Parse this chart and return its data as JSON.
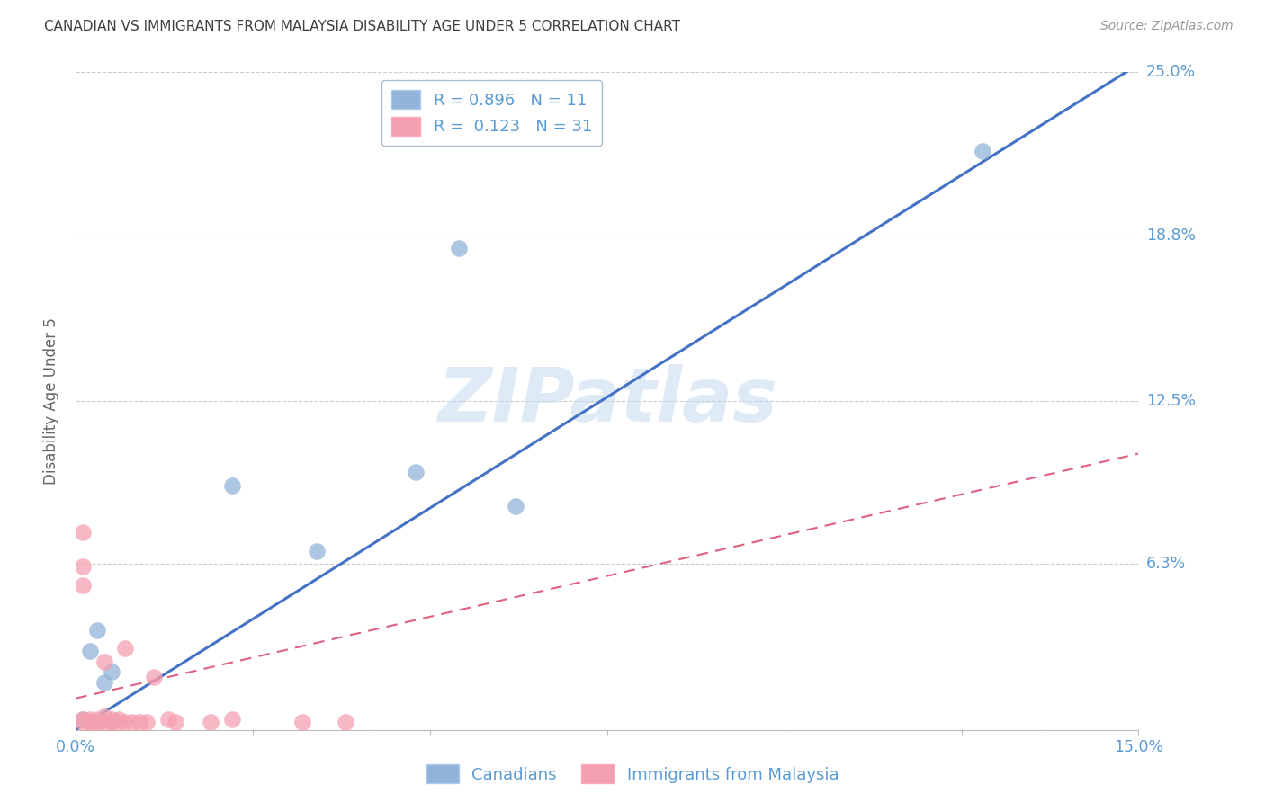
{
  "title": "CANADIAN VS IMMIGRANTS FROM MALAYSIA DISABILITY AGE UNDER 5 CORRELATION CHART",
  "source": "Source: ZipAtlas.com",
  "ylabel": "Disability Age Under 5",
  "watermark": "ZIPatlas",
  "xmin": 0.0,
  "xmax": 0.15,
  "ymin": 0.0,
  "ymax": 0.25,
  "canadian_R": 0.896,
  "canadian_N": 11,
  "immigrant_R": 0.123,
  "immigrant_N": 31,
  "canadian_color": "#92B4D9",
  "immigrant_color": "#F4A0B0",
  "canadian_line_color": "#4472C4",
  "immigrant_line_color": "#E06080",
  "grid_color": "#CCCCCC",
  "title_color": "#404040",
  "axis_label_color": "#5B9BD5",
  "background_color": "#FFFFFF",
  "canadian_line_x": [
    0.0,
    0.15
  ],
  "canadian_line_y": [
    0.0,
    0.253
  ],
  "immigrant_line_x": [
    0.0,
    0.15
  ],
  "immigrant_line_y": [
    0.012,
    0.105
  ],
  "canadian_points_x": [
    0.001,
    0.002,
    0.003,
    0.004,
    0.005,
    0.022,
    0.034,
    0.048,
    0.054,
    0.062,
    0.128
  ],
  "canadian_points_y": [
    0.004,
    0.03,
    0.038,
    0.018,
    0.022,
    0.093,
    0.068,
    0.098,
    0.183,
    0.085,
    0.22
  ],
  "immigrant_points_x": [
    0.001,
    0.001,
    0.001,
    0.001,
    0.001,
    0.002,
    0.002,
    0.002,
    0.003,
    0.003,
    0.003,
    0.004,
    0.004,
    0.004,
    0.005,
    0.005,
    0.005,
    0.006,
    0.006,
    0.007,
    0.007,
    0.008,
    0.009,
    0.01,
    0.011,
    0.013,
    0.014,
    0.019,
    0.022,
    0.032,
    0.038
  ],
  "immigrant_points_y": [
    0.075,
    0.062,
    0.055,
    0.004,
    0.003,
    0.003,
    0.004,
    0.003,
    0.003,
    0.004,
    0.003,
    0.026,
    0.005,
    0.003,
    0.003,
    0.003,
    0.004,
    0.003,
    0.004,
    0.031,
    0.003,
    0.003,
    0.003,
    0.003,
    0.02,
    0.004,
    0.003,
    0.003,
    0.004,
    0.003,
    0.003
  ]
}
